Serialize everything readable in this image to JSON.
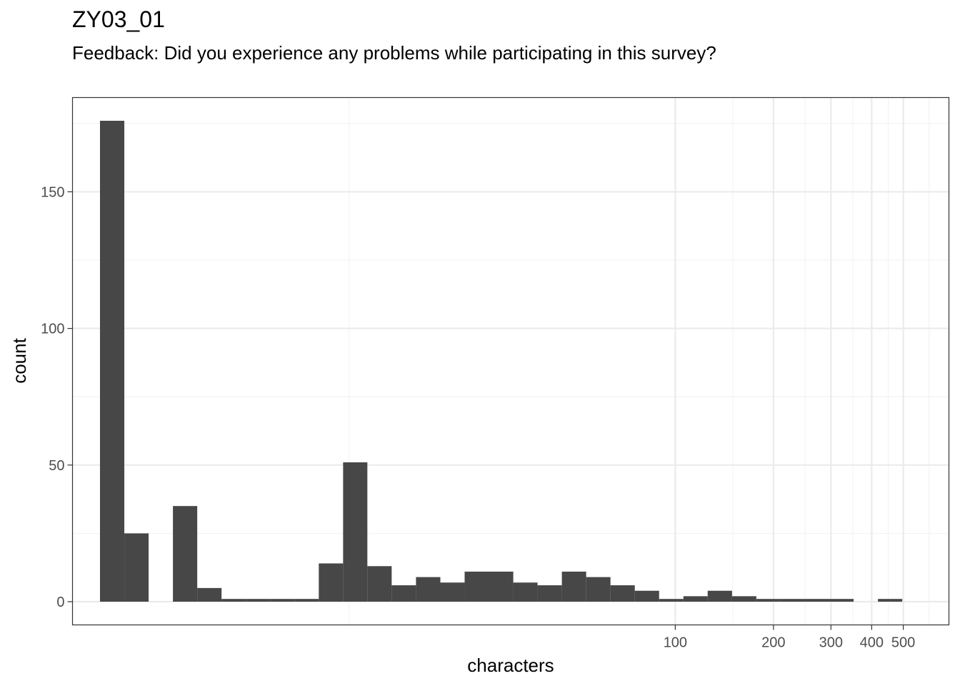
{
  "chart_data": {
    "type": "bar",
    "title": "ZY03_01",
    "subtitle": "Feedback: Did you experience any problems while participating in this survey?",
    "xlabel": "characters",
    "ylabel": "count",
    "x_scale": "log10",
    "xlim": [
      1.42,
      690
    ],
    "ylim": [
      -8.5,
      184.5
    ],
    "x_tick_labels": [
      {
        "value": 100,
        "label": "100"
      },
      {
        "value": 200,
        "label": "200"
      },
      {
        "value": 300,
        "label": "300"
      },
      {
        "value": 400,
        "label": "400"
      },
      {
        "value": 500,
        "label": "500"
      }
    ],
    "y_tick_labels": [
      {
        "value": 0,
        "label": "0"
      },
      {
        "value": 50,
        "label": "50"
      },
      {
        "value": 100,
        "label": "100"
      },
      {
        "value": 150,
        "label": "150"
      }
    ],
    "x_minor_grid": [
      10,
      150,
      250,
      350,
      450,
      600
    ],
    "y_minor_grid": [
      25,
      75,
      125,
      175
    ],
    "bar_color": "#474747",
    "grid": true,
    "bins": [
      {
        "x0": 1.724,
        "x1": 2.047,
        "count": 176
      },
      {
        "x0": 2.047,
        "x1": 2.43,
        "count": 25
      },
      {
        "x0": 2.43,
        "x1": 2.885,
        "count": 0
      },
      {
        "x0": 2.885,
        "x1": 3.425,
        "count": 35
      },
      {
        "x0": 3.425,
        "x1": 4.066,
        "count": 5
      },
      {
        "x0": 4.066,
        "x1": 4.827,
        "count": 1
      },
      {
        "x0": 4.827,
        "x1": 5.73,
        "count": 1
      },
      {
        "x0": 5.73,
        "x1": 6.803,
        "count": 1
      },
      {
        "x0": 6.803,
        "x1": 8.077,
        "count": 1
      },
      {
        "x0": 8.077,
        "x1": 9.589,
        "count": 14
      },
      {
        "x0": 9.589,
        "x1": 11.38,
        "count": 51
      },
      {
        "x0": 11.38,
        "x1": 13.51,
        "count": 13
      },
      {
        "x0": 13.51,
        "x1": 16.04,
        "count": 6
      },
      {
        "x0": 16.04,
        "x1": 19.05,
        "count": 9
      },
      {
        "x0": 19.05,
        "x1": 22.61,
        "count": 7
      },
      {
        "x0": 22.61,
        "x1": 26.84,
        "count": 11
      },
      {
        "x0": 26.84,
        "x1": 31.87,
        "count": 11
      },
      {
        "x0": 31.87,
        "x1": 37.83,
        "count": 7
      },
      {
        "x0": 37.83,
        "x1": 44.91,
        "count": 6
      },
      {
        "x0": 44.91,
        "x1": 53.32,
        "count": 11
      },
      {
        "x0": 53.32,
        "x1": 63.3,
        "count": 9
      },
      {
        "x0": 63.3,
        "x1": 75.15,
        "count": 6
      },
      {
        "x0": 75.15,
        "x1": 89.22,
        "count": 4
      },
      {
        "x0": 89.22,
        "x1": 105.9,
        "count": 1
      },
      {
        "x0": 105.9,
        "x1": 125.7,
        "count": 2
      },
      {
        "x0": 125.7,
        "x1": 149.3,
        "count": 4
      },
      {
        "x0": 149.3,
        "x1": 177.2,
        "count": 2
      },
      {
        "x0": 177.2,
        "x1": 210.4,
        "count": 1
      },
      {
        "x0": 210.4,
        "x1": 249.8,
        "count": 1
      },
      {
        "x0": 249.8,
        "x1": 296.6,
        "count": 1
      },
      {
        "x0": 296.6,
        "x1": 352.1,
        "count": 1
      },
      {
        "x0": 352.1,
        "x1": 418.0,
        "count": 0
      },
      {
        "x0": 418.0,
        "x1": 496.3,
        "count": 1
      }
    ]
  }
}
